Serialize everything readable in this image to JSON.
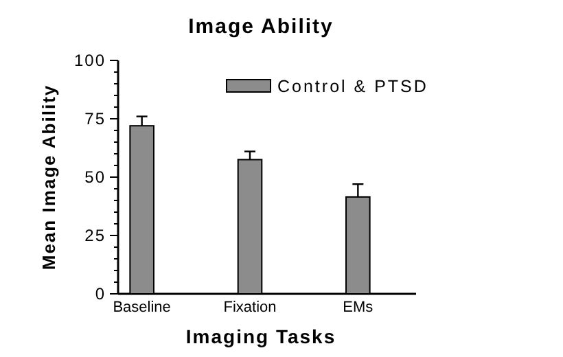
{
  "chart_data": {
    "type": "bar",
    "title": "Image Ability",
    "xlabel": "Imaging Tasks",
    "ylabel": "Mean Image Ability",
    "categories": [
      "Baseline",
      "Fixation",
      "EMs"
    ],
    "series": [
      {
        "name": "Control & PTSD",
        "color": "#8c8c8c",
        "values": [
          72,
          57.5,
          41.5
        ],
        "errors": [
          4,
          3.5,
          5.5
        ]
      }
    ],
    "ylim": [
      0,
      100
    ],
    "yticks": [
      0,
      {
        "value": 5,
        "label": null
      },
      {
        "value": 10,
        "label": null
      },
      {
        "value": 15,
        "label": null
      },
      {
        "value": 20,
        "label": null
      },
      25,
      {
        "value": 30,
        "label": null
      },
      {
        "value": 35,
        "label": null
      },
      {
        "value": 40,
        "label": null
      },
      {
        "value": 45,
        "label": null
      },
      50,
      {
        "value": 55,
        "label": null
      },
      {
        "value": 60,
        "label": null
      },
      {
        "value": 65,
        "label": null
      },
      {
        "value": 70,
        "label": null
      },
      75,
      {
        "value": 80,
        "label": null
      },
      {
        "value": 85,
        "label": null
      },
      {
        "value": 90,
        "label": null
      },
      {
        "value": 95,
        "label": null
      },
      100
    ],
    "legend": "top right"
  }
}
